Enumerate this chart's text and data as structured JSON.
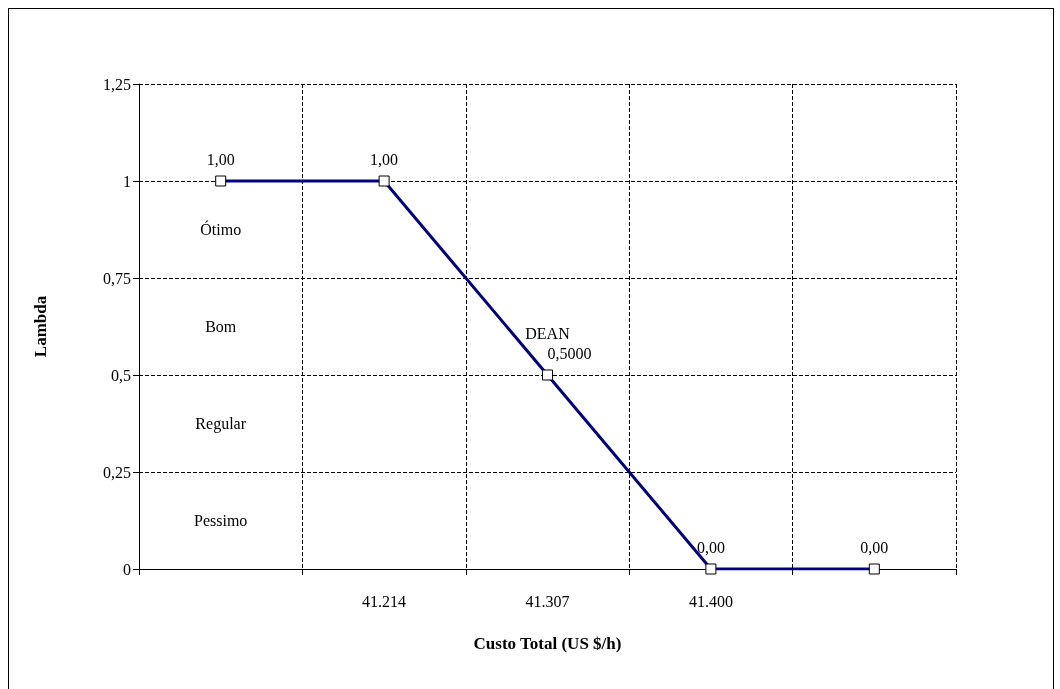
{
  "chart_data": {
    "type": "line",
    "xlabel": "Custo Total (US $/h)",
    "ylabel": "Lambda",
    "categories": [
      null,
      "41.214",
      "41.307",
      "41.400",
      null
    ],
    "series": [
      {
        "color": "#000080",
        "values": [
          1,
          1,
          0.5,
          0,
          0
        ],
        "value_labels": [
          "1,00",
          "1,00",
          "0,5000",
          "0,00",
          "0,00"
        ]
      }
    ],
    "ylim": [
      0,
      1.25
    ],
    "yticks": [
      0,
      {
        "value": 0.25,
        "label": "0,25"
      },
      {
        "value": 0.5,
        "label": "0,5"
      },
      {
        "value": 0.75,
        "label": "0,75"
      },
      1,
      {
        "value": 1.25,
        "label": "1,25"
      }
    ],
    "annotations": [
      {
        "text": "DEAN",
        "x": "41.307",
        "y": 0.5
      },
      "Ótimo",
      "Bom",
      "Regular",
      "Pessimo"
    ],
    "grid": true,
    "marker": "square",
    "line_style": "solid"
  }
}
